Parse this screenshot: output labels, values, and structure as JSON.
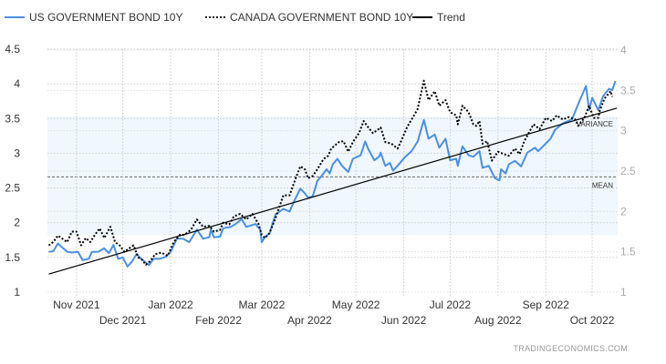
{
  "chart_data": {
    "type": "line",
    "x_unit": "days since 2021-11-01",
    "xlim": [
      -18.8,
      350.5
    ],
    "left_axis": {
      "ylim": [
        1,
        4.5
      ],
      "ticks": [
        "1",
        "1.5",
        "2",
        "2.5",
        "3",
        "3.5",
        "4",
        "4.5"
      ]
    },
    "right_axis": {
      "ylim": [
        1,
        4
      ],
      "ticks": [
        "1",
        "1.5",
        "2",
        "2.5",
        "3",
        "3.5",
        "4"
      ]
    },
    "x_ticks": [
      {
        "day": 0,
        "label": "Nov 2021"
      },
      {
        "day": 30,
        "label": "Dec 2021"
      },
      {
        "day": 61,
        "label": "Jan 2022"
      },
      {
        "day": 92,
        "label": "Feb 2022"
      },
      {
        "day": 120,
        "label": "Mar 2022"
      },
      {
        "day": 151,
        "label": "Apr 2022"
      },
      {
        "day": 181,
        "label": "May 2022"
      },
      {
        "day": 212,
        "label": "Jun 2022"
      },
      {
        "day": 242,
        "label": "Jul 2022"
      },
      {
        "day": 273,
        "label": "Aug 2022"
      },
      {
        "day": 304,
        "label": "Sep 2022"
      },
      {
        "day": 334,
        "label": "Oct 2022"
      }
    ],
    "grid": true,
    "legend_position": "top-left",
    "series": [
      {
        "name": "US GOVERNMENT BOND 10Y",
        "axis": "left",
        "color": "#4a90e2",
        "style": "solid",
        "points": [
          [
            -18,
            1.58
          ],
          [
            -15,
            1.59
          ],
          [
            -12,
            1.7
          ],
          [
            -9,
            1.64
          ],
          [
            -6,
            1.58
          ],
          [
            -3,
            1.57
          ],
          [
            1,
            1.58
          ],
          [
            4,
            1.46
          ],
          [
            8,
            1.48
          ],
          [
            10,
            1.58
          ],
          [
            14,
            1.58
          ],
          [
            18,
            1.63
          ],
          [
            21,
            1.56
          ],
          [
            24,
            1.68
          ],
          [
            27,
            1.48
          ],
          [
            30,
            1.5
          ],
          [
            33,
            1.37
          ],
          [
            36,
            1.44
          ],
          [
            39,
            1.55
          ],
          [
            41,
            1.5
          ],
          [
            44,
            1.44
          ],
          [
            47,
            1.39
          ],
          [
            50,
            1.48
          ],
          [
            54,
            1.48
          ],
          [
            58,
            1.51
          ],
          [
            61,
            1.58
          ],
          [
            65,
            1.77
          ],
          [
            69,
            1.77
          ],
          [
            73,
            1.72
          ],
          [
            78,
            1.9
          ],
          [
            82,
            1.77
          ],
          [
            86,
            1.79
          ],
          [
            87,
            1.9
          ],
          [
            89,
            1.79
          ],
          [
            93,
            1.8
          ],
          [
            95,
            1.92
          ],
          [
            100,
            1.94
          ],
          [
            103,
            1.98
          ],
          [
            107,
            2.05
          ],
          [
            110,
            1.94
          ],
          [
            116,
            1.98
          ],
          [
            119,
            1.9
          ],
          [
            120,
            1.72
          ],
          [
            122,
            1.79
          ],
          [
            125,
            1.85
          ],
          [
            129,
            2.12
          ],
          [
            134,
            2.2
          ],
          [
            138,
            2.16
          ],
          [
            141,
            2.31
          ],
          [
            145,
            2.49
          ],
          [
            148,
            2.42
          ],
          [
            150,
            2.36
          ],
          [
            153,
            2.38
          ],
          [
            156,
            2.6
          ],
          [
            159,
            2.68
          ],
          [
            162,
            2.77
          ],
          [
            164,
            2.71
          ],
          [
            166,
            2.84
          ],
          [
            169,
            2.92
          ],
          [
            172,
            2.82
          ],
          [
            176,
            2.73
          ],
          [
            179,
            2.92
          ],
          [
            184,
            2.97
          ],
          [
            187,
            3.17
          ],
          [
            189,
            3.06
          ],
          [
            193,
            2.9
          ],
          [
            196,
            2.95
          ],
          [
            197,
            3.01
          ],
          [
            200,
            2.82
          ],
          [
            203,
            2.86
          ],
          [
            205,
            2.75
          ],
          [
            208,
            2.82
          ],
          [
            213,
            2.95
          ],
          [
            217,
            3.03
          ],
          [
            221,
            3.17
          ],
          [
            225,
            3.48
          ],
          [
            228,
            3.21
          ],
          [
            232,
            3.27
          ],
          [
            235,
            3.08
          ],
          [
            239,
            3.21
          ],
          [
            242,
            2.9
          ],
          [
            246,
            2.92
          ],
          [
            247,
            2.82
          ],
          [
            250,
            3.1
          ],
          [
            254,
            2.97
          ],
          [
            257,
            2.95
          ],
          [
            261,
            3.03
          ],
          [
            263,
            2.79
          ],
          [
            267,
            2.82
          ],
          [
            271,
            2.64
          ],
          [
            274,
            2.61
          ],
          [
            275,
            2.77
          ],
          [
            278,
            2.71
          ],
          [
            280,
            2.84
          ],
          [
            284,
            2.89
          ],
          [
            288,
            2.81
          ],
          [
            292,
            3.01
          ],
          [
            297,
            3.08
          ],
          [
            299,
            3.03
          ],
          [
            304,
            3.14
          ],
          [
            307,
            3.21
          ],
          [
            310,
            3.34
          ],
          [
            315,
            3.43
          ],
          [
            321,
            3.49
          ],
          [
            325,
            3.71
          ],
          [
            330,
            3.97
          ],
          [
            332,
            3.62
          ],
          [
            334,
            3.8
          ],
          [
            338,
            3.62
          ],
          [
            341,
            3.82
          ],
          [
            345,
            3.93
          ],
          [
            347,
            3.91
          ],
          [
            349,
            4.04
          ]
        ]
      },
      {
        "name": "CANADA GOVERNMENT BOND 10Y",
        "axis": "right",
        "color": "#000000",
        "style": "dotted",
        "points": [
          [
            -18,
            1.58
          ],
          [
            -15,
            1.62
          ],
          [
            -12,
            1.7
          ],
          [
            -9,
            1.66
          ],
          [
            -6,
            1.62
          ],
          [
            -3,
            1.75
          ],
          [
            0,
            1.75
          ],
          [
            3,
            1.58
          ],
          [
            6,
            1.67
          ],
          [
            9,
            1.62
          ],
          [
            12,
            1.71
          ],
          [
            15,
            1.79
          ],
          [
            18,
            1.67
          ],
          [
            22,
            1.81
          ],
          [
            25,
            1.62
          ],
          [
            28,
            1.58
          ],
          [
            31,
            1.5
          ],
          [
            34,
            1.54
          ],
          [
            37,
            1.58
          ],
          [
            40,
            1.43
          ],
          [
            42,
            1.41
          ],
          [
            45,
            1.34
          ],
          [
            48,
            1.39
          ],
          [
            51,
            1.47
          ],
          [
            55,
            1.49
          ],
          [
            59,
            1.45
          ],
          [
            63,
            1.62
          ],
          [
            67,
            1.71
          ],
          [
            70,
            1.71
          ],
          [
            74,
            1.77
          ],
          [
            78,
            1.9
          ],
          [
            82,
            1.81
          ],
          [
            86,
            1.82
          ],
          [
            89,
            1.75
          ],
          [
            93,
            1.77
          ],
          [
            95,
            1.86
          ],
          [
            99,
            1.84
          ],
          [
            102,
            1.94
          ],
          [
            106,
            1.97
          ],
          [
            110,
            1.9
          ],
          [
            114,
            1.97
          ],
          [
            118,
            1.84
          ],
          [
            120,
            1.71
          ],
          [
            122,
            1.67
          ],
          [
            125,
            1.73
          ],
          [
            129,
            1.92
          ],
          [
            134,
            2.2
          ],
          [
            138,
            2.2
          ],
          [
            142,
            2.41
          ],
          [
            145,
            2.56
          ],
          [
            148,
            2.52
          ],
          [
            150,
            2.41
          ],
          [
            153,
            2.44
          ],
          [
            156,
            2.52
          ],
          [
            160,
            2.65
          ],
          [
            163,
            2.69
          ],
          [
            165,
            2.78
          ],
          [
            170,
            2.86
          ],
          [
            173,
            2.87
          ],
          [
            176,
            2.74
          ],
          [
            179,
            2.86
          ],
          [
            183,
            2.97
          ],
          [
            186,
            3.12
          ],
          [
            189,
            3.04
          ],
          [
            192,
            2.97
          ],
          [
            195,
            3.01
          ],
          [
            197,
            3.04
          ],
          [
            200,
            2.86
          ],
          [
            204,
            2.84
          ],
          [
            208,
            2.78
          ],
          [
            210,
            2.86
          ],
          [
            214,
            3.04
          ],
          [
            218,
            3.17
          ],
          [
            221,
            3.27
          ],
          [
            225,
            3.62
          ],
          [
            228,
            3.38
          ],
          [
            232,
            3.49
          ],
          [
            235,
            3.31
          ],
          [
            239,
            3.38
          ],
          [
            242,
            3.23
          ],
          [
            246,
            3.19
          ],
          [
            247,
            3.08
          ],
          [
            250,
            3.31
          ],
          [
            254,
            3.23
          ],
          [
            257,
            3.08
          ],
          [
            259,
            3.06
          ],
          [
            261,
            3.12
          ],
          [
            263,
            2.84
          ],
          [
            266,
            2.87
          ],
          [
            269,
            2.63
          ],
          [
            273,
            2.74
          ],
          [
            277,
            2.71
          ],
          [
            280,
            2.69
          ],
          [
            284,
            2.78
          ],
          [
            287,
            2.71
          ],
          [
            290,
            2.87
          ],
          [
            296,
            3.08
          ],
          [
            300,
            3.02
          ],
          [
            304,
            3.16
          ],
          [
            308,
            3.12
          ],
          [
            311,
            3.19
          ],
          [
            315,
            3.14
          ],
          [
            319,
            3.17
          ],
          [
            323,
            3.14
          ],
          [
            325,
            3.06
          ],
          [
            329,
            3.16
          ],
          [
            332,
            3.31
          ],
          [
            335,
            3.16
          ],
          [
            338,
            3.16
          ],
          [
            339,
            3.25
          ],
          [
            342,
            3.4
          ],
          [
            346,
            3.49
          ],
          [
            347,
            3.42
          ]
        ]
      },
      {
        "name": "Trend",
        "axis": "left",
        "color": "#000000",
        "style": "solid",
        "points": [
          [
            -18,
            1.26
          ],
          [
            350,
            3.65
          ]
        ]
      }
    ],
    "annotations": {
      "variance": {
        "label": "VARIANCE",
        "range": [
          1.82,
          3.53
        ],
        "axis": "left",
        "color": "#f0f7fe"
      },
      "mean": {
        "label": "MEAN",
        "value": 2.66,
        "axis": "left"
      }
    }
  },
  "footer": "TRADINGECONOMICS.COM"
}
